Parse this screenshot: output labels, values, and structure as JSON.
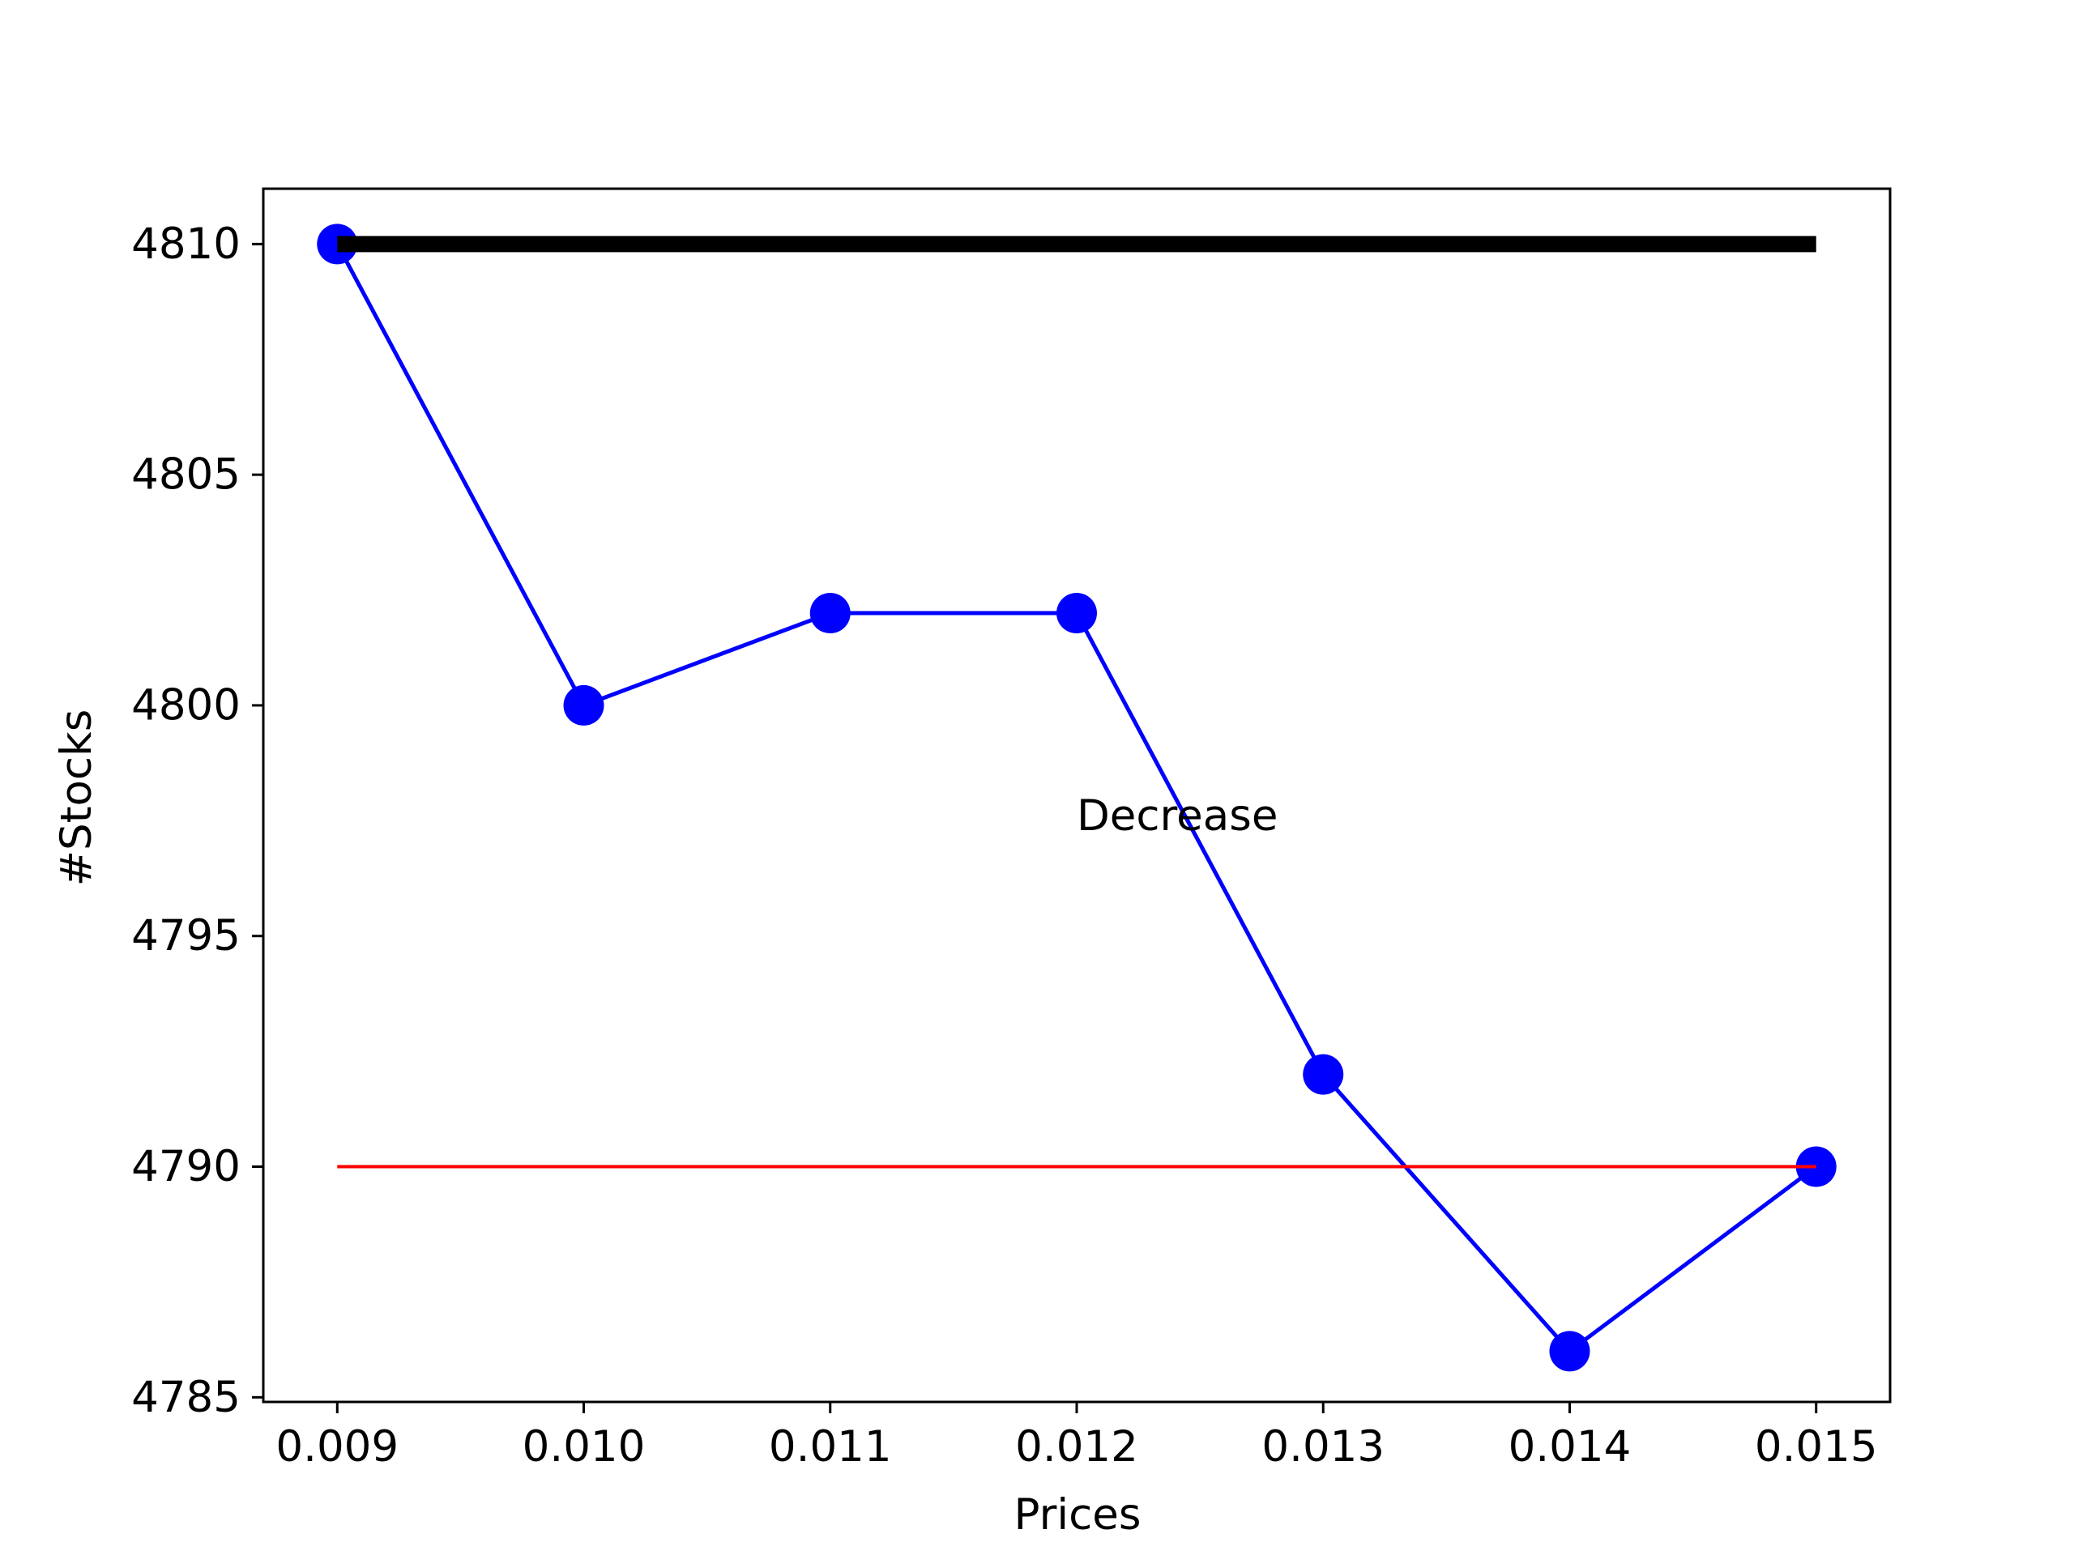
{
  "chart_data": {
    "type": "line",
    "title": "",
    "xlabel": "Prices",
    "ylabel": "#Stocks",
    "x_ticks": [
      "0.009",
      "0.010",
      "0.011",
      "0.012",
      "0.013",
      "0.014",
      "0.015"
    ],
    "y_ticks": [
      "4785",
      "4790",
      "4795",
      "4800",
      "4805",
      "4810"
    ],
    "xlim": [
      0.0087,
      0.0153
    ],
    "ylim": [
      4784.9,
      4811.2
    ],
    "grid": false,
    "series": [
      {
        "style": "line-with-markers",
        "color": "#0000ff",
        "x": [
          0.009,
          0.01,
          0.011,
          0.012,
          0.013,
          0.014,
          0.015
        ],
        "y": [
          4810,
          4800,
          4802,
          4802,
          4792,
          4786,
          4790
        ]
      },
      {
        "style": "line",
        "color": "#000000",
        "x": [
          0.009,
          0.015
        ],
        "y": [
          4810,
          4810
        ]
      },
      {
        "style": "line",
        "color": "#ff0000",
        "x": [
          0.009,
          0.015
        ],
        "y": [
          4790,
          4790
        ]
      }
    ],
    "annotations": [
      {
        "text": "Decrease",
        "x": 0.012,
        "y": 4797.6
      }
    ]
  }
}
